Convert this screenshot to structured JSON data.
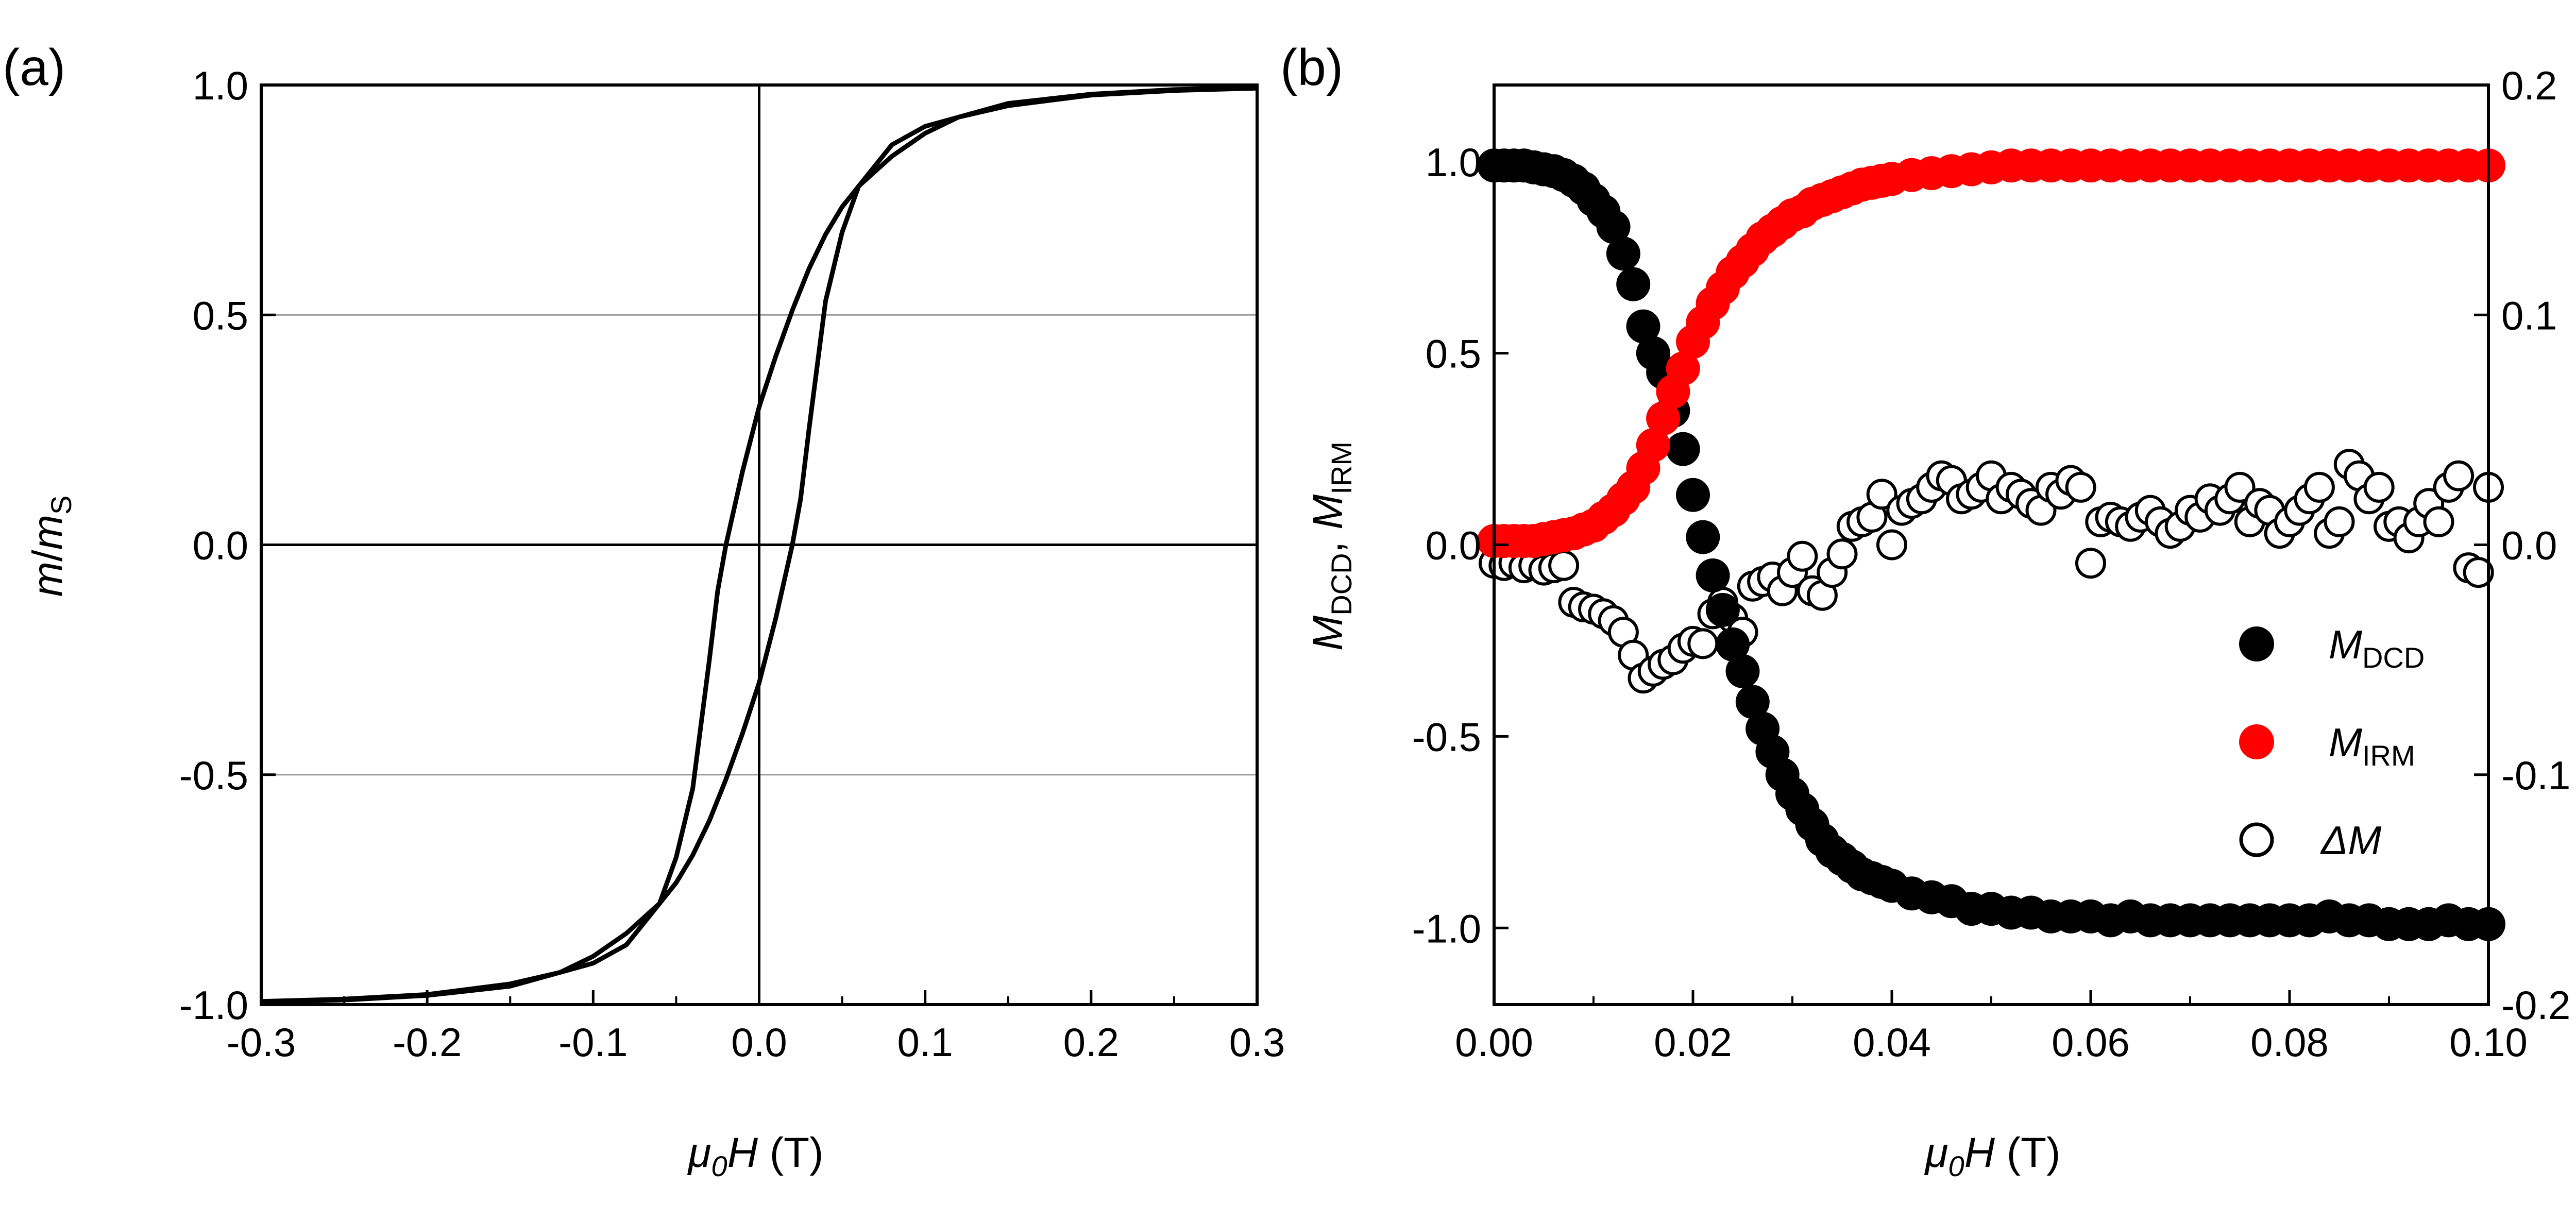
{
  "chart_data": [
    {
      "panel_label": "(a)",
      "type": "line",
      "xlabel": {
        "base_mu": "μ",
        "mu_sub": "0",
        "var": "H",
        "unit": " (T)"
      },
      "ylabel": {
        "a": "m",
        "slash": "/",
        "b": "m",
        "b_sub": "S"
      },
      "xlim": [
        -0.3,
        0.3
      ],
      "ylim": [
        -1.0,
        1.0
      ],
      "xticks": [
        "-0.3",
        "-0.2",
        "-0.1",
        "0.0",
        "0.1",
        "0.2",
        "0.3"
      ],
      "yticks": [
        "-1.0",
        "-0.5",
        "0.0",
        "0.5",
        "1.0"
      ],
      "grid": "horizontal at 0.5 and -0.5",
      "series": [
        {
          "x": [
            -0.3,
            -0.25,
            -0.2,
            -0.15,
            -0.12,
            -0.1,
            -0.08,
            -0.06,
            -0.05,
            -0.04,
            -0.03,
            -0.02,
            -0.01,
            0.0,
            0.01,
            0.02,
            0.025,
            0.03,
            0.04,
            0.05,
            0.06,
            0.08,
            0.1,
            0.15,
            0.2,
            0.25,
            0.3
          ],
          "y": [
            -0.993,
            -0.988,
            -0.978,
            -0.955,
            -0.93,
            -0.895,
            -0.845,
            -0.78,
            -0.735,
            -0.675,
            -0.6,
            -0.51,
            -0.41,
            -0.3,
            -0.16,
            0.0,
            0.1,
            0.25,
            0.53,
            0.68,
            0.78,
            0.87,
            0.91,
            0.96,
            0.98,
            0.99,
            0.995
          ]
        },
        {
          "x": [
            -0.3,
            -0.25,
            -0.2,
            -0.15,
            -0.1,
            -0.08,
            -0.06,
            -0.05,
            -0.04,
            -0.03,
            -0.025,
            -0.02,
            -0.01,
            0.0,
            0.01,
            0.02,
            0.03,
            0.04,
            0.05,
            0.06,
            0.08,
            0.1,
            0.12,
            0.15,
            0.2,
            0.25,
            0.3
          ],
          "y": [
            -0.995,
            -0.99,
            -0.98,
            -0.96,
            -0.91,
            -0.87,
            -0.78,
            -0.68,
            -0.53,
            -0.25,
            -0.1,
            0.0,
            0.16,
            0.3,
            0.41,
            0.51,
            0.6,
            0.675,
            0.735,
            0.78,
            0.845,
            0.895,
            0.93,
            0.955,
            0.978,
            0.988,
            0.993
          ]
        }
      ]
    },
    {
      "panel_label": "(b)",
      "type": "scatter",
      "xlabel": {
        "base_mu": "μ",
        "mu_sub": "0",
        "var": "H",
        "unit": " (T)"
      },
      "ylabel_left": {
        "m1": "M",
        "m1_sub": "DCD",
        "sep": ", ",
        "m2": "M",
        "m2_sub": "IRM"
      },
      "ylabel_right": {
        "delta": "Δ",
        "m": "M"
      },
      "xlim": [
        0.0,
        0.1
      ],
      "ylim_left": [
        -1.2,
        1.2
      ],
      "ylim_right": [
        -0.2,
        0.2
      ],
      "xticks": [
        "0.00",
        "0.02",
        "0.04",
        "0.06",
        "0.08",
        "0.10"
      ],
      "yticks_left": [
        "-1.0",
        "-0.5",
        "0.0",
        "0.5",
        "1.0"
      ],
      "yticks_right": [
        "-0.2",
        "-0.1",
        "0.0",
        "0.1",
        "0.2"
      ],
      "legend_position": "bottom-right",
      "legend": [
        {
          "m": "M",
          "sub": "DCD",
          "color": "#000000",
          "marker": "filled-circle"
        },
        {
          "m": "M",
          "sub": "IRM",
          "color": "#ff0000",
          "marker": "filled-circle"
        },
        {
          "delta": "Δ",
          "m": "M",
          "color": "#000000",
          "marker": "open-circle"
        }
      ],
      "series": [
        {
          "name_key": "DCD",
          "axis": "left",
          "color": "#000000",
          "x": [
            0.0,
            0.001,
            0.002,
            0.003,
            0.004,
            0.005,
            0.006,
            0.007,
            0.008,
            0.009,
            0.01,
            0.011,
            0.012,
            0.013,
            0.014,
            0.015,
            0.016,
            0.017,
            0.018,
            0.019,
            0.02,
            0.021,
            0.022,
            0.023,
            0.024,
            0.025,
            0.026,
            0.027,
            0.028,
            0.029,
            0.03,
            0.031,
            0.032,
            0.033,
            0.034,
            0.035,
            0.036,
            0.037,
            0.038,
            0.039,
            0.04,
            0.042,
            0.044,
            0.046,
            0.048,
            0.05,
            0.052,
            0.054,
            0.056,
            0.058,
            0.06,
            0.062,
            0.064,
            0.066,
            0.068,
            0.07,
            0.072,
            0.074,
            0.076,
            0.078,
            0.08,
            0.082,
            0.084,
            0.086,
            0.088,
            0.09,
            0.092,
            0.094,
            0.096,
            0.098,
            0.1
          ],
          "y": [
            0.99,
            0.99,
            0.99,
            0.99,
            0.985,
            0.98,
            0.975,
            0.965,
            0.95,
            0.93,
            0.9,
            0.87,
            0.83,
            0.76,
            0.68,
            0.57,
            0.5,
            0.45,
            0.35,
            0.25,
            0.13,
            0.02,
            -0.08,
            -0.17,
            -0.26,
            -0.33,
            -0.41,
            -0.48,
            -0.54,
            -0.6,
            -0.65,
            -0.69,
            -0.73,
            -0.77,
            -0.8,
            -0.82,
            -0.84,
            -0.86,
            -0.87,
            -0.88,
            -0.89,
            -0.91,
            -0.92,
            -0.93,
            -0.95,
            -0.95,
            -0.96,
            -0.96,
            -0.97,
            -0.97,
            -0.97,
            -0.98,
            -0.97,
            -0.98,
            -0.98,
            -0.98,
            -0.98,
            -0.98,
            -0.98,
            -0.98,
            -0.98,
            -0.98,
            -0.97,
            -0.98,
            -0.98,
            -0.99,
            -0.99,
            -0.99,
            -0.98,
            -0.99,
            -0.99
          ]
        },
        {
          "name_key": "IRM",
          "axis": "left",
          "color": "#ff0000",
          "x": [
            0.0,
            0.001,
            0.002,
            0.003,
            0.004,
            0.005,
            0.006,
            0.007,
            0.008,
            0.009,
            0.01,
            0.011,
            0.012,
            0.013,
            0.014,
            0.015,
            0.016,
            0.017,
            0.018,
            0.019,
            0.02,
            0.021,
            0.022,
            0.023,
            0.024,
            0.025,
            0.026,
            0.027,
            0.028,
            0.029,
            0.03,
            0.031,
            0.032,
            0.033,
            0.034,
            0.035,
            0.036,
            0.037,
            0.038,
            0.039,
            0.04,
            0.042,
            0.044,
            0.046,
            0.048,
            0.05,
            0.052,
            0.054,
            0.056,
            0.058,
            0.06,
            0.062,
            0.064,
            0.066,
            0.068,
            0.07,
            0.072,
            0.074,
            0.076,
            0.078,
            0.08,
            0.082,
            0.084,
            0.086,
            0.088,
            0.09,
            0.092,
            0.094,
            0.096,
            0.098,
            0.1
          ],
          "y": [
            0.01,
            0.01,
            0.01,
            0.01,
            0.01,
            0.015,
            0.02,
            0.025,
            0.03,
            0.04,
            0.05,
            0.07,
            0.09,
            0.12,
            0.15,
            0.2,
            0.26,
            0.33,
            0.4,
            0.46,
            0.53,
            0.58,
            0.63,
            0.67,
            0.71,
            0.74,
            0.77,
            0.8,
            0.82,
            0.84,
            0.86,
            0.87,
            0.89,
            0.9,
            0.91,
            0.92,
            0.93,
            0.94,
            0.945,
            0.95,
            0.955,
            0.965,
            0.97,
            0.975,
            0.98,
            0.985,
            0.99,
            0.99,
            0.99,
            0.99,
            0.99,
            0.99,
            0.99,
            0.99,
            0.99,
            0.99,
            0.99,
            0.99,
            0.99,
            0.99,
            0.99,
            0.99,
            0.99,
            0.99,
            0.99,
            0.99,
            0.99,
            0.99,
            0.99,
            0.99,
            0.99
          ]
        },
        {
          "name_key": "dM",
          "axis": "right",
          "color": "#000000",
          "x": [
            0.0,
            0.001,
            0.002,
            0.003,
            0.004,
            0.005,
            0.006,
            0.007,
            0.008,
            0.009,
            0.01,
            0.011,
            0.012,
            0.013,
            0.014,
            0.015,
            0.016,
            0.017,
            0.018,
            0.019,
            0.02,
            0.021,
            0.022,
            0.023,
            0.024,
            0.025,
            0.026,
            0.027,
            0.028,
            0.029,
            0.03,
            0.031,
            0.032,
            0.033,
            0.034,
            0.035,
            0.036,
            0.037,
            0.038,
            0.039,
            0.04,
            0.041,
            0.042,
            0.043,
            0.044,
            0.045,
            0.046,
            0.047,
            0.048,
            0.049,
            0.05,
            0.051,
            0.052,
            0.053,
            0.054,
            0.055,
            0.056,
            0.057,
            0.058,
            0.059,
            0.06,
            0.061,
            0.062,
            0.063,
            0.064,
            0.065,
            0.066,
            0.067,
            0.068,
            0.069,
            0.07,
            0.071,
            0.072,
            0.073,
            0.074,
            0.075,
            0.076,
            0.077,
            0.078,
            0.079,
            0.08,
            0.081,
            0.082,
            0.083,
            0.084,
            0.085,
            0.086,
            0.087,
            0.088,
            0.089,
            0.09,
            0.091,
            0.092,
            0.093,
            0.094,
            0.095,
            0.096,
            0.097,
            0.098,
            0.099,
            0.1
          ],
          "y": [
            -0.008,
            -0.009,
            -0.008,
            -0.01,
            -0.009,
            -0.011,
            -0.01,
            -0.009,
            -0.025,
            -0.027,
            -0.028,
            -0.03,
            -0.033,
            -0.038,
            -0.048,
            -0.058,
            -0.055,
            -0.052,
            -0.05,
            -0.045,
            -0.042,
            -0.043,
            -0.03,
            -0.025,
            -0.032,
            -0.038,
            -0.018,
            -0.016,
            -0.014,
            -0.02,
            -0.012,
            -0.005,
            -0.02,
            -0.022,
            -0.012,
            -0.004,
            0.008,
            0.01,
            0.012,
            0.022,
            0.0,
            0.015,
            0.018,
            0.02,
            0.025,
            0.03,
            0.028,
            0.02,
            0.022,
            0.025,
            0.03,
            0.02,
            0.025,
            0.022,
            0.018,
            0.015,
            0.025,
            0.022,
            0.028,
            0.025,
            -0.008,
            0.01,
            0.012,
            0.01,
            0.008,
            0.012,
            0.015,
            0.01,
            0.005,
            0.008,
            0.015,
            0.012,
            0.02,
            0.015,
            0.02,
            0.025,
            0.01,
            0.018,
            0.015,
            0.005,
            0.01,
            0.015,
            0.02,
            0.025,
            0.005,
            0.01,
            0.035,
            0.03,
            0.02,
            0.025,
            0.008,
            0.01,
            0.003,
            0.01,
            0.018,
            0.01,
            0.025,
            0.03,
            -0.01,
            -0.012,
            0.025
          ]
        }
      ]
    }
  ]
}
